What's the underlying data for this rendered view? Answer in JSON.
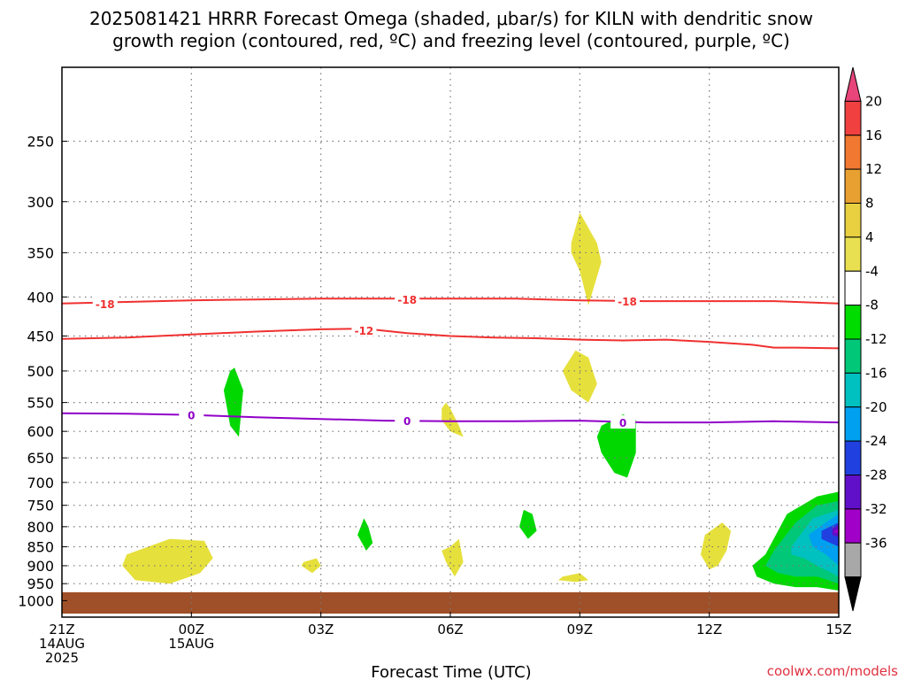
{
  "title": {
    "line1": "2025081421 HRRR Forecast Omega (shaded, μbar/s) for KILN with dendritic snow",
    "line2": "growth region (contoured, red, ºC) and freezing level (contoured, purple, ºC)"
  },
  "credit": "coolwx.com/models",
  "chart_data": {
    "type": "heatmap",
    "xlabel": "Forecast Time (UTC)",
    "ylabel": "",
    "x_ticks": [
      {
        "hour": 0,
        "lines": [
          "21Z",
          "14AUG",
          "2025"
        ]
      },
      {
        "hour": 3,
        "lines": [
          "00Z",
          "15AUG"
        ]
      },
      {
        "hour": 6,
        "lines": [
          "03Z"
        ]
      },
      {
        "hour": 9,
        "lines": [
          "06Z"
        ]
      },
      {
        "hour": 12,
        "lines": [
          "09Z"
        ]
      },
      {
        "hour": 15,
        "lines": [
          "12Z"
        ]
      },
      {
        "hour": 18,
        "lines": [
          "15Z"
        ]
      }
    ],
    "xlim": [
      0,
      18
    ],
    "ylim": [
      1000,
      200
    ],
    "y_scale": "log",
    "y_ticks": [
      250,
      300,
      350,
      400,
      450,
      500,
      550,
      600,
      650,
      700,
      750,
      800,
      850,
      900,
      950,
      1000
    ],
    "grid": true,
    "colorbar": {
      "position": "right",
      "labels": [
        "20",
        "16",
        "12",
        "8",
        "4",
        "-4",
        "-8",
        "-12",
        "-16",
        "-20",
        "-24",
        "-28",
        "-32",
        "-36"
      ],
      "colors": [
        "#e8457a",
        "#f04040",
        "#f07830",
        "#e8a030",
        "#e8d040",
        "#e8e050",
        "#ffffff",
        "#00dc00",
        "#00c878",
        "#00c0c0",
        "#00a0f0",
        "#2040e0",
        "#6010c8",
        "#a000c8",
        "#a8a8a8",
        "#000000"
      ]
    },
    "series": [
      {
        "type": "contour",
        "color": "#f03030",
        "label": "-18",
        "x": [
          0,
          1.5,
          3,
          4.5,
          6,
          7.5,
          9,
          10.5,
          12,
          13.5,
          15,
          16.5,
          18
        ],
        "y": [
          408,
          406,
          404,
          403,
          402,
          402,
          402,
          402,
          404,
          405,
          405,
          405,
          408
        ]
      },
      {
        "type": "contour",
        "color": "#f03030",
        "label": "-12",
        "x": [
          0,
          1.5,
          3,
          4.5,
          6,
          7,
          8,
          9,
          10,
          11,
          12,
          13,
          14,
          15,
          16,
          16.5,
          17,
          18
        ],
        "y": [
          454,
          452,
          448,
          444,
          441,
          440,
          446,
          450,
          452,
          453,
          455,
          456,
          455,
          458,
          462,
          466,
          466,
          467
        ]
      },
      {
        "type": "contour",
        "color": "#9000c8",
        "label": "0",
        "x": [
          0,
          1.5,
          3,
          4.5,
          6,
          7.5,
          9,
          10.5,
          12,
          13.5,
          15,
          16.5,
          18
        ],
        "y": [
          568,
          569,
          571,
          575,
          578,
          581,
          582,
          582,
          581,
          584,
          584,
          582,
          584
        ]
      }
    ],
    "contour_labels": [
      {
        "text": "-18",
        "x": 1.0,
        "y": 408,
        "color": "#f03030"
      },
      {
        "text": "-18",
        "x": 8.0,
        "y": 403,
        "color": "#f03030"
      },
      {
        "text": "-18",
        "x": 13.1,
        "y": 405,
        "color": "#f03030"
      },
      {
        "text": "-12",
        "x": 7.0,
        "y": 442,
        "color": "#f03030"
      },
      {
        "text": "0",
        "x": 3.0,
        "y": 571,
        "color": "#9000c8"
      },
      {
        "text": "0",
        "x": 8.0,
        "y": 581,
        "color": "#9000c8"
      },
      {
        "text": "0",
        "x": 13.0,
        "y": 584,
        "color": "#9000c8"
      }
    ],
    "shaded_regions": [
      {
        "color": "#e6e03c",
        "x": [
          1.5,
          2.5,
          3.3,
          3.5,
          3.2,
          2.5,
          1.7,
          1.4
        ],
        "y": [
          870,
          830,
          835,
          880,
          920,
          950,
          940,
          900
        ]
      },
      {
        "color": "#00d800",
        "x": [
          3.9,
          4.0,
          4.2,
          4.1,
          3.9,
          3.75
        ],
        "y": [
          500,
          495,
          530,
          610,
          590,
          530
        ]
      },
      {
        "color": "#e6e03c",
        "x": [
          5.6,
          5.9,
          6.0,
          5.8,
          5.55
        ],
        "y": [
          890,
          880,
          900,
          920,
          900
        ]
      },
      {
        "color": "#00d800",
        "x": [
          7.0,
          7.1,
          7.2,
          7.05,
          6.85
        ],
        "y": [
          780,
          800,
          840,
          860,
          820
        ]
      },
      {
        "color": "#e6e03c",
        "x": [
          8.9,
          9.0,
          9.2,
          9.3,
          9.0,
          8.8,
          8.8
        ],
        "y": [
          550,
          560,
          590,
          610,
          600,
          580,
          560
        ]
      },
      {
        "color": "#e6e03c",
        "x": [
          9.0,
          9.2,
          9.3,
          9.1,
          8.9,
          8.8
        ],
        "y": [
          850,
          830,
          890,
          930,
          890,
          860
        ]
      },
      {
        "color": "#00d800",
        "x": [
          10.7,
          10.9,
          11.0,
          10.8,
          10.6
        ],
        "y": [
          760,
          770,
          810,
          830,
          800
        ]
      },
      {
        "color": "#e6e03c",
        "x": [
          11.9,
          12.2,
          12.4,
          12.2,
          11.8,
          11.6
        ],
        "y": [
          470,
          480,
          520,
          550,
          530,
          500
        ]
      },
      {
        "color": "#e6e03c",
        "x": [
          12.0,
          12.4,
          12.5,
          12.2,
          12.0,
          11.8,
          11.8
        ],
        "y": [
          310,
          340,
          360,
          410,
          370,
          350,
          340
        ]
      },
      {
        "color": "#e6e03c",
        "x": [
          11.6,
          12.0,
          12.2,
          11.9,
          11.5
        ],
        "y": [
          930,
          920,
          940,
          945,
          940
        ]
      },
      {
        "color": "#00d800",
        "x": [
          12.5,
          13.0,
          13.3,
          13.3,
          13.1,
          12.8,
          12.5,
          12.4
        ],
        "y": [
          590,
          570,
          580,
          640,
          690,
          680,
          640,
          610
        ]
      },
      {
        "color": "#e6e03c",
        "x": [
          14.9,
          15.3,
          15.5,
          15.4,
          15.2,
          15.0,
          14.8
        ],
        "y": [
          820,
          790,
          810,
          860,
          900,
          910,
          870
        ]
      },
      {
        "color": "#00d800",
        "x": [
          16.3,
          16.8,
          17.5,
          18.0,
          18.0,
          17.5,
          17.0,
          16.5,
          16.1,
          16.0
        ],
        "y": [
          870,
          770,
          730,
          720,
          970,
          960,
          960,
          950,
          930,
          900
        ]
      },
      {
        "color": "#00c878",
        "x": [
          16.5,
          17.0,
          17.5,
          18.0,
          18.0,
          17.5,
          17.0,
          16.6,
          16.3
        ],
        "y": [
          860,
          790,
          750,
          740,
          950,
          930,
          930,
          920,
          900
        ]
      },
      {
        "color": "#00c0c0",
        "x": [
          16.9,
          17.4,
          18.0,
          18.0,
          17.5,
          17.2,
          16.9
        ],
        "y": [
          850,
          780,
          760,
          930,
          900,
          880,
          870
        ]
      },
      {
        "color": "#00a0f0",
        "x": [
          17.3,
          17.7,
          18.0,
          18.0,
          17.7,
          17.4
        ],
        "y": [
          820,
          790,
          770,
          900,
          870,
          850
        ]
      },
      {
        "color": "#2040e0",
        "x": [
          17.6,
          18.0,
          18.0,
          17.8,
          17.6
        ],
        "y": [
          810,
          790,
          850,
          840,
          830
        ]
      },
      {
        "color": "#6010c8",
        "x": [
          17.85,
          18.0,
          18.0,
          17.85
        ],
        "y": [
          805,
          795,
          825,
          820
        ]
      },
      {
        "color": "#a000c8",
        "x": [
          17.9,
          18.0,
          18.0,
          17.9
        ],
        "y": [
          810,
          805,
          815,
          815
        ]
      },
      {
        "color": "#a05028",
        "x": [
          0,
          18,
          18,
          0
        ],
        "y": [
          975,
          975,
          1040,
          1040
        ]
      }
    ]
  }
}
